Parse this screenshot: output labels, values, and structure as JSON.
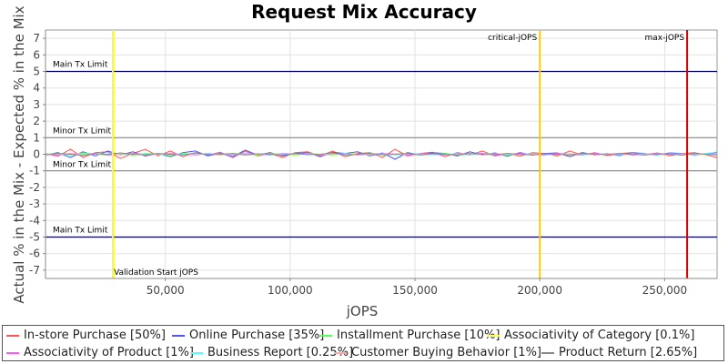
{
  "chart_data": {
    "type": "line",
    "title": "Request Mix Accuracy",
    "xlabel": "jOPS",
    "ylabel": "Actual % in the Mix - Expected % in the Mix",
    "xlim": [
      2000,
      271000
    ],
    "ylim": [
      -7.5,
      7.5
    ],
    "x_ticks": [
      50000,
      100000,
      150000,
      200000,
      250000
    ],
    "x_tick_labels": [
      "50,000",
      "100,000",
      "150,000",
      "200,000",
      "250,000"
    ],
    "y_ticks": [
      7,
      6,
      5,
      4,
      3,
      2,
      1,
      0,
      -1,
      -2,
      -3,
      -4,
      -5,
      -6,
      -7
    ],
    "y_tick_labels": [
      "7",
      "6",
      "5",
      "4",
      "3",
      "2",
      "1",
      "0",
      "-1",
      "-2",
      "-3",
      "-4",
      "-5",
      "-6",
      "-7"
    ],
    "grid": true,
    "legend_position": "bottom",
    "horizontal_lines": [
      {
        "y": 5,
        "label": "Main Tx Limit",
        "color": "#000066"
      },
      {
        "y": 1,
        "label": "Minor Tx Limit",
        "color": "#888888"
      },
      {
        "y": -1,
        "label": "Minor Tx Limit",
        "color": "#888888"
      },
      {
        "y": -5,
        "label": "Main Tx Limit",
        "color": "#000066"
      }
    ],
    "vertical_lines": [
      {
        "x": 29000,
        "label": "Validation Start jOPS",
        "color": "#ffff00"
      },
      {
        "x": 200000,
        "label": "critical-jOPS",
        "color": "#ffcc00"
      },
      {
        "x": 259000,
        "label": "max-jOPS",
        "color": "#dd0000"
      }
    ],
    "x": [
      2000,
      7000,
      12000,
      17000,
      22000,
      27000,
      32000,
      37000,
      42000,
      47000,
      52000,
      57000,
      62000,
      67000,
      72000,
      77000,
      82000,
      87000,
      92000,
      97000,
      102000,
      107000,
      112000,
      117000,
      122000,
      127000,
      132000,
      137000,
      142000,
      147000,
      152000,
      157000,
      162000,
      167000,
      172000,
      177000,
      182000,
      187000,
      192000,
      197000,
      202000,
      207000,
      212000,
      217000,
      222000,
      227000,
      232000,
      237000,
      242000,
      247000,
      252000,
      257000,
      262000,
      267000,
      271000
    ],
    "series": [
      {
        "name": "In-store Purchase [50%]",
        "color": "#ff5555",
        "values": [
          0.05,
          -0.12,
          0.3,
          -0.2,
          0.1,
          0.15,
          -0.25,
          0.05,
          0.3,
          -0.1,
          0.2,
          -0.15,
          0.1,
          -0.05,
          0.12,
          -0.2,
          0.18,
          -0.1,
          0.05,
          -0.2,
          0.1,
          0.15,
          -0.1,
          0.2,
          -0.15,
          0.05,
          0.1,
          -0.2,
          0.3,
          -0.1,
          0.05,
          0.12,
          -0.15,
          0.1,
          -0.05,
          0.2,
          -0.1,
          0.05,
          -0.12,
          0.1,
          0.05,
          -0.1,
          0.2,
          -0.05,
          0.1,
          -0.08,
          0.05,
          0.1,
          -0.05,
          0.08,
          -0.1,
          0.05,
          0.1,
          -0.05,
          -0.2
        ]
      },
      {
        "name": "Online Purchase [35%]",
        "color": "#5555ff",
        "values": [
          -0.05,
          0.1,
          -0.2,
          0.15,
          -0.1,
          0.2,
          -0.05,
          0.15,
          -0.1,
          0.05,
          -0.15,
          0.1,
          0.2,
          -0.1,
          0.05,
          -0.15,
          0.25,
          -0.05,
          0.1,
          -0.1,
          0.05,
          0.1,
          -0.15,
          0.12,
          0.05,
          0.15,
          -0.1,
          0.08,
          -0.3,
          0.1,
          -0.05,
          0.1,
          0.05,
          -0.1,
          0.15,
          -0.05,
          0.08,
          -0.12,
          0.1,
          -0.05,
          0.05,
          0.08,
          -0.15,
          0.1,
          -0.05,
          0.05,
          -0.08,
          0.1,
          0.05,
          -0.05,
          0.08,
          0.05,
          -0.05,
          0.05,
          0.1
        ]
      },
      {
        "name": "Installment Purchase [10%]",
        "color": "#55ff55",
        "values": [
          0.0,
          0.05,
          -0.05,
          0.08,
          0.0,
          -0.05,
          0.05,
          -0.05,
          0.05,
          0.0,
          -0.05,
          0.05,
          0.0,
          0.05,
          -0.05,
          0.05,
          0.0,
          -0.05,
          0.05,
          0.0,
          -0.05,
          0.05,
          0.0,
          -0.05,
          0.05,
          0.0,
          0.05,
          -0.05,
          0.0,
          0.05,
          -0.05,
          0.0,
          0.05,
          -0.05,
          0.0,
          0.05,
          0.0,
          -0.05,
          0.05,
          0.0,
          -0.05,
          0.05,
          0.0,
          -0.05,
          0.05,
          0.0,
          0.05,
          -0.05,
          0.0,
          0.05,
          0.0,
          -0.05,
          0.05,
          0.0,
          0.0
        ]
      },
      {
        "name": "Associativity of Category [0.1%]",
        "color": "#ffff55",
        "values": [
          0.0,
          0.02,
          -0.02,
          0.02,
          0.0,
          -0.02,
          0.02,
          0.0,
          -0.02,
          0.02,
          0.0,
          -0.02,
          0.02,
          0.0,
          -0.02,
          0.02,
          0.0,
          -0.02,
          0.02,
          0.0,
          -0.02,
          0.02,
          0.0,
          -0.02,
          0.02,
          0.0,
          -0.02,
          0.02,
          0.0,
          -0.02,
          0.02,
          0.0,
          -0.02,
          0.02,
          0.0,
          -0.02,
          0.02,
          0.0,
          -0.02,
          0.02,
          0.0,
          -0.02,
          0.02,
          0.0,
          -0.02,
          0.02,
          0.0,
          -0.02,
          0.02,
          0.0,
          -0.02,
          0.02,
          0.0,
          -0.02,
          0.0
        ]
      },
      {
        "name": "Associativity of Product [1%]",
        "color": "#ff55ff",
        "values": [
          0.0,
          -0.05,
          0.05,
          0.0,
          0.05,
          -0.05,
          0.0,
          0.05,
          -0.05,
          0.0,
          0.05,
          0.0,
          -0.05,
          0.05,
          0.0,
          -0.05,
          0.05,
          0.0,
          -0.05,
          0.05,
          0.0,
          0.05,
          -0.05,
          0.0,
          0.05,
          -0.05,
          0.0,
          0.05,
          0.0,
          -0.05,
          0.05,
          0.0,
          -0.05,
          0.05,
          0.0,
          0.05,
          -0.05,
          0.0,
          0.05,
          0.0,
          -0.05,
          0.05,
          0.0,
          -0.05,
          0.05,
          0.0,
          0.05,
          -0.05,
          0.0,
          0.05,
          0.0,
          -0.05,
          0.05,
          0.0,
          0.0
        ]
      },
      {
        "name": "Business Report [0.25%]",
        "color": "#55ffff",
        "values": [
          0.02,
          0.0,
          -0.03,
          0.02,
          0.0,
          0.03,
          -0.02,
          0.0,
          0.02,
          -0.03,
          0.0,
          0.02,
          -0.02,
          0.03,
          0.0,
          -0.02,
          0.02,
          0.0,
          -0.03,
          0.02,
          0.0,
          0.02,
          -0.02,
          0.0,
          0.03,
          -0.02,
          0.0,
          0.02,
          -0.03,
          0.0,
          0.02,
          -0.02,
          0.0,
          0.03,
          -0.02,
          0.0,
          0.02,
          -0.02,
          0.0,
          0.03,
          -0.02,
          0.0,
          0.02,
          -0.03,
          0.0,
          0.02,
          -0.02,
          0.0,
          0.03,
          -0.02,
          0.0,
          0.02,
          -0.02,
          0.05,
          0.15
        ]
      },
      {
        "name": "Customer Buying Behavior [1%]",
        "color": "#ffaaaa",
        "values": [
          0.03,
          -0.02,
          0.04,
          -0.03,
          0.02,
          0.0,
          -0.03,
          0.03,
          0.0,
          -0.02,
          0.03,
          -0.03,
          0.02,
          0.0,
          -0.02,
          0.03,
          -0.02,
          0.0,
          0.03,
          -0.03,
          0.02,
          0.0,
          -0.02,
          0.03,
          -0.02,
          0.0,
          0.02,
          -0.03,
          0.03,
          0.0,
          -0.02,
          0.03,
          -0.02,
          0.0,
          0.02,
          -0.03,
          0.03,
          0.0,
          -0.02,
          0.02,
          0.0,
          -0.02,
          0.03,
          0.0,
          -0.02,
          0.02,
          0.0,
          -0.03,
          0.02,
          0.0,
          -0.02,
          0.03,
          0.0,
          -0.02,
          0.0
        ]
      },
      {
        "name": "Product Return [2.65%]",
        "color": "#888888",
        "values": [
          -0.05,
          0.05,
          0.0,
          -0.08,
          0.05,
          -0.03,
          0.08,
          0.0,
          -0.05,
          0.05,
          0.0,
          -0.05,
          0.08,
          -0.03,
          0.0,
          0.05,
          -0.05,
          0.03,
          0.0,
          -0.05,
          0.05,
          -0.03,
          0.0,
          0.08,
          -0.05,
          0.0,
          0.05,
          -0.03,
          0.0,
          0.05,
          -0.05,
          0.03,
          0.0,
          -0.05,
          0.05,
          0.0,
          -0.03,
          0.05,
          0.0,
          -0.05,
          0.03,
          0.0,
          -0.05,
          0.05,
          0.0,
          -0.03,
          0.05,
          0.0,
          -0.05,
          0.03,
          0.0,
          -0.05,
          0.05,
          0.0,
          -0.05
        ]
      }
    ]
  }
}
